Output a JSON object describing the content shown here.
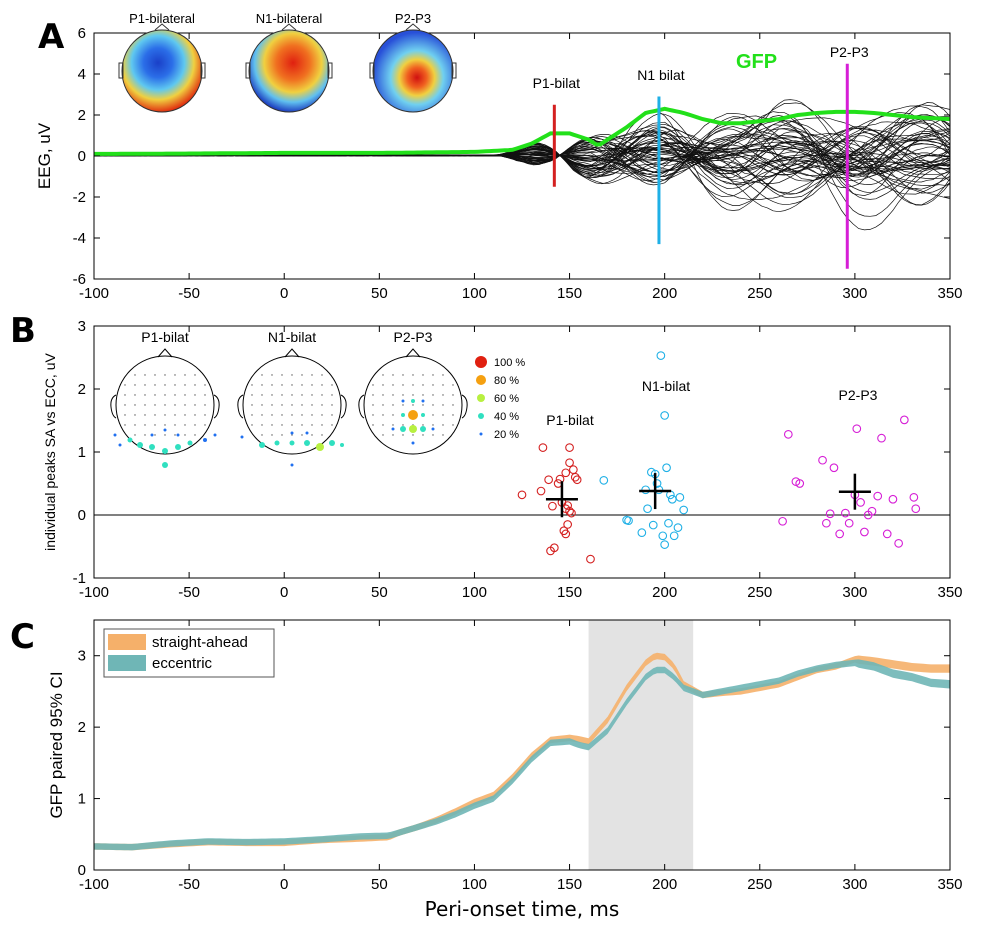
{
  "panels": {
    "A": {
      "letter": "A"
    },
    "B": {
      "letter": "B"
    },
    "C": {
      "letter": "C"
    }
  },
  "colors": {
    "gfp": "#22e01a",
    "p1": "#d42020",
    "n1": "#1fb0e6",
    "p2p3": "#d61ed6",
    "straight": "#f5b06a",
    "eccentric": "#6fb6b6",
    "shade": "#e3e3e3"
  },
  "chart_data": [
    {
      "panel": "A",
      "type": "line",
      "xlabel": "",
      "ylabel": "EEG, uV",
      "xlim": [
        -100,
        350
      ],
      "ylim": [
        -6,
        6
      ],
      "x_ticks": [
        -100,
        -50,
        0,
        50,
        100,
        150,
        200,
        250,
        300,
        350
      ],
      "y_ticks": [
        -6,
        -4,
        -2,
        0,
        2,
        4,
        6
      ],
      "grid": false,
      "topomap_labels": [
        "P1-bilateral",
        "N1-bilateral",
        "P2-P3"
      ],
      "series": [
        {
          "name": "GFP",
          "x": [
            -100,
            -50,
            0,
            50,
            100,
            120,
            130,
            140,
            150,
            160,
            165,
            170,
            180,
            190,
            200,
            210,
            220,
            230,
            240,
            250,
            260,
            270,
            280,
            290,
            300,
            310,
            320,
            330,
            340,
            350
          ],
          "y": [
            0.1,
            0.12,
            0.15,
            0.15,
            0.2,
            0.3,
            0.6,
            1.1,
            1.1,
            0.8,
            0.5,
            0.8,
            1.4,
            2.1,
            2.3,
            2.1,
            1.8,
            1.6,
            1.6,
            1.7,
            1.8,
            2.0,
            2.1,
            2.15,
            2.15,
            2.1,
            2.0,
            1.9,
            1.85,
            1.8
          ]
        }
      ],
      "markers": [
        {
          "label": "P1-bilat",
          "x": 142,
          "ymin": -1.5,
          "ymax": 2.5
        },
        {
          "label": "N1  bilat",
          "x": 197,
          "ymin": -4.3,
          "ymax": 2.9
        },
        {
          "label": "P2-P3",
          "x": 296,
          "ymin": -5.5,
          "ymax": 4.5
        }
      ]
    },
    {
      "panel": "B",
      "type": "scatter",
      "xlabel": "",
      "ylabel": "individual peaks SA vs ECC, uV",
      "xlim": [
        -100,
        350
      ],
      "ylim": [
        -1,
        3
      ],
      "x_ticks": [
        -100,
        -50,
        0,
        50,
        100,
        150,
        200,
        250,
        300,
        350
      ],
      "y_ticks": [
        -1,
        0,
        1,
        2,
        3
      ],
      "grid": false,
      "head_labels": [
        "P1-bilat",
        "N1-bilat",
        "P2-P3"
      ],
      "size_legend": [
        "100 %",
        "80 %",
        "60 %",
        "40 %",
        "20 %"
      ],
      "series": [
        {
          "name": "P1-bilat",
          "mean": [
            146,
            0.25
          ],
          "points": [
            [
              125,
              0.32
            ],
            [
              135,
              0.38
            ],
            [
              136,
              1.07
            ],
            [
              139,
              0.56
            ],
            [
              140,
              -0.57
            ],
            [
              141,
              0.14
            ],
            [
              142,
              -0.52
            ],
            [
              144,
              0.5
            ],
            [
              145,
              0.57
            ],
            [
              146,
              0.2
            ],
            [
              147,
              -0.25
            ],
            [
              148,
              0.67
            ],
            [
              148,
              -0.3
            ],
            [
              149,
              0.15
            ],
            [
              149,
              -0.15
            ],
            [
              150,
              0.06
            ],
            [
              150,
              1.07
            ],
            [
              150,
              0.83
            ],
            [
              151,
              0.03
            ],
            [
              152,
              0.72
            ],
            [
              153,
              0.6
            ],
            [
              154,
              0.56
            ],
            [
              161,
              -0.7
            ],
            [
              148,
              0.1
            ]
          ]
        },
        {
          "name": "N1-bilat",
          "mean": [
            195,
            0.38
          ],
          "points": [
            [
              168,
              0.55
            ],
            [
              180,
              -0.08
            ],
            [
              181,
              -0.09
            ],
            [
              188,
              -0.28
            ],
            [
              190,
              0.4
            ],
            [
              191,
              0.1
            ],
            [
              193,
              0.68
            ],
            [
              194,
              -0.16
            ],
            [
              195,
              0.65
            ],
            [
              196,
              0.5
            ],
            [
              197,
              0.4
            ],
            [
              198,
              2.53
            ],
            [
              199,
              -0.33
            ],
            [
              200,
              -0.47
            ],
            [
              200,
              1.58
            ],
            [
              201,
              0.75
            ],
            [
              202,
              -0.13
            ],
            [
              203,
              0.32
            ],
            [
              204,
              0.25
            ],
            [
              205,
              -0.33
            ],
            [
              207,
              -0.2
            ],
            [
              208,
              0.28
            ],
            [
              210,
              0.08
            ]
          ]
        },
        {
          "name": "P2-P3",
          "mean": [
            300,
            0.37
          ],
          "points": [
            [
              262,
              -0.1
            ],
            [
              265,
              1.28
            ],
            [
              269,
              0.53
            ],
            [
              271,
              0.5
            ],
            [
              283,
              0.87
            ],
            [
              285,
              -0.13
            ],
            [
              287,
              0.02
            ],
            [
              289,
              0.75
            ],
            [
              292,
              -0.3
            ],
            [
              295,
              0.03
            ],
            [
              297,
              -0.13
            ],
            [
              300,
              0.32
            ],
            [
              301,
              1.37
            ],
            [
              303,
              0.2
            ],
            [
              305,
              -0.27
            ],
            [
              307,
              0.0
            ],
            [
              309,
              0.06
            ],
            [
              312,
              0.3
            ],
            [
              314,
              1.22
            ],
            [
              317,
              -0.3
            ],
            [
              320,
              0.25
            ],
            [
              323,
              -0.45
            ],
            [
              326,
              1.51
            ],
            [
              331,
              0.28
            ],
            [
              332,
              0.1
            ]
          ]
        }
      ]
    },
    {
      "panel": "C",
      "type": "area",
      "xlabel": "Peri-onset time, ms",
      "ylabel": "GFP paired 95% CI",
      "xlim": [
        -100,
        350
      ],
      "ylim": [
        0,
        3.5
      ],
      "x_ticks": [
        -100,
        -50,
        0,
        50,
        100,
        150,
        200,
        250,
        300,
        350
      ],
      "y_ticks": [
        0,
        1,
        2,
        3
      ],
      "grid": false,
      "legend_position": "top-left",
      "shaded_interval": [
        160,
        215
      ],
      "series": [
        {
          "name": "straight-ahead",
          "x": [
            -100,
            -80,
            -60,
            -40,
            -20,
            0,
            20,
            40,
            55,
            60,
            70,
            80,
            90,
            100,
            110,
            120,
            130,
            140,
            150,
            155,
            160,
            170,
            180,
            190,
            195,
            200,
            205,
            210,
            220,
            230,
            240,
            250,
            260,
            270,
            280,
            290,
            300,
            310,
            320,
            330,
            340,
            350
          ],
          "y": [
            0.33,
            0.32,
            0.36,
            0.39,
            0.38,
            0.38,
            0.42,
            0.44,
            0.46,
            0.52,
            0.6,
            0.7,
            0.82,
            0.95,
            1.05,
            1.3,
            1.6,
            1.82,
            1.85,
            1.83,
            1.8,
            2.1,
            2.55,
            2.9,
            3.0,
            2.98,
            2.85,
            2.6,
            2.45,
            2.48,
            2.5,
            2.55,
            2.6,
            2.7,
            2.8,
            2.85,
            2.95,
            2.92,
            2.88,
            2.84,
            2.82,
            2.82
          ],
          "band": 0.09
        },
        {
          "name": "eccentric",
          "x": [
            -100,
            -80,
            -60,
            -40,
            -20,
            0,
            20,
            40,
            55,
            60,
            70,
            80,
            90,
            100,
            110,
            120,
            130,
            140,
            150,
            155,
            160,
            170,
            180,
            190,
            195,
            200,
            205,
            210,
            220,
            230,
            240,
            250,
            260,
            270,
            280,
            290,
            300,
            310,
            320,
            330,
            340,
            350
          ],
          "y": [
            0.33,
            0.32,
            0.37,
            0.4,
            0.39,
            0.4,
            0.43,
            0.47,
            0.48,
            0.52,
            0.6,
            0.68,
            0.78,
            0.9,
            1.0,
            1.25,
            1.55,
            1.78,
            1.8,
            1.75,
            1.72,
            1.95,
            2.35,
            2.7,
            2.8,
            2.8,
            2.7,
            2.55,
            2.45,
            2.5,
            2.55,
            2.6,
            2.65,
            2.75,
            2.82,
            2.87,
            2.9,
            2.85,
            2.75,
            2.7,
            2.62,
            2.6
          ],
          "band": 0.09
        }
      ]
    }
  ]
}
